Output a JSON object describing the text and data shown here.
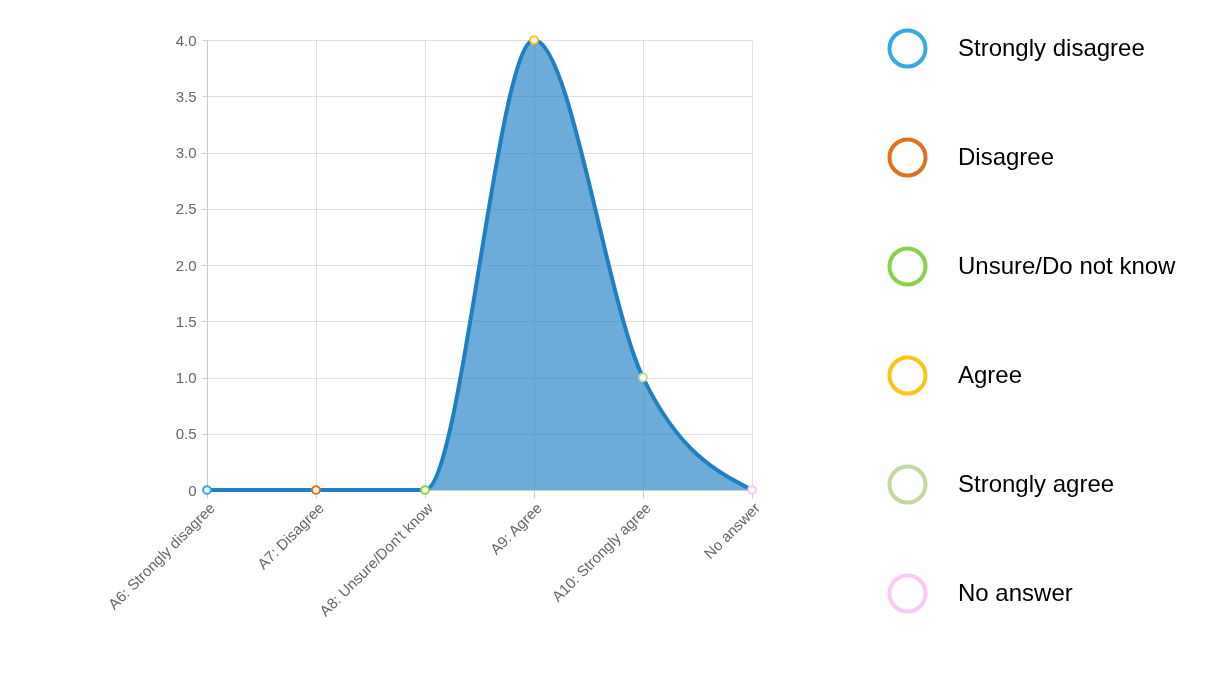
{
  "chart_data": {
    "type": "area",
    "categories": [
      "A6: Strongly disagree",
      "A7: Disagree",
      "A8: Unsure/Don't know",
      "A9: Agree",
      "A10: Strongly agree",
      "No answer"
    ],
    "series": [
      {
        "color": "#1f7fc4",
        "values": [
          0,
          0,
          0,
          4,
          1,
          0
        ]
      },
      {
        "type": "scatter",
        "name": "Strongly disagree",
        "color": "#36a9e1",
        "x": [
          "A6: Strongly disagree"
        ],
        "values": [
          0
        ]
      },
      {
        "type": "scatter",
        "name": "Disagree",
        "color": "#e0721f",
        "x": [
          "A7: Disagree"
        ],
        "values": [
          0
        ]
      },
      {
        "type": "scatter",
        "name": "Unsure/Do not know",
        "color": "#8bd04a",
        "x": [
          "A8: Unsure/Don't know"
        ],
        "values": [
          0
        ]
      },
      {
        "type": "scatter",
        "name": "Agree",
        "color": "#fcc419",
        "x": [
          "A9: Agree"
        ],
        "values": [
          4
        ]
      },
      {
        "type": "scatter",
        "name": "Strongly agree",
        "color": "#c5d8a0",
        "x": [
          "A10: Strongly agree"
        ],
        "values": [
          1
        ]
      },
      {
        "type": "scatter",
        "name": "No answer",
        "color": "#f9c9f6",
        "x": [
          "No answer"
        ],
        "values": [
          0
        ]
      }
    ],
    "ylim": [
      0,
      4
    ],
    "yticks": [
      0,
      0.5,
      {
        "value": 1,
        "label": "1.0"
      },
      1.5,
      {
        "value": 2,
        "label": "2.0"
      },
      2.5,
      {
        "value": 3,
        "label": "3.0"
      },
      3.5,
      {
        "value": 4,
        "label": "4.0"
      }
    ],
    "grid": true,
    "legend": "right"
  }
}
